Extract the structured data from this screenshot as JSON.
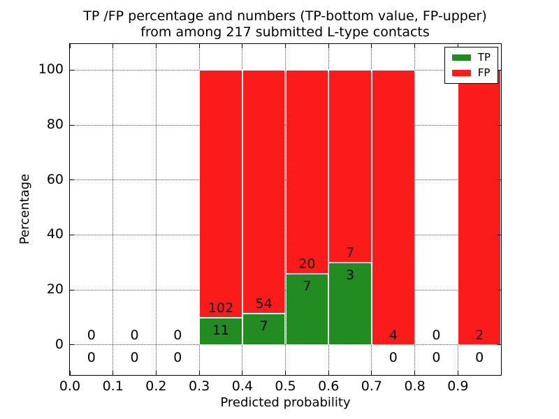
{
  "figure": {
    "title_line1": "TP /FP percentage and numbers (TP-bottom value, FP-upper)",
    "title_line2": "from among 217 submitted L-type contacts"
  },
  "chart_data": {
    "type": "bar",
    "stacking": "percent",
    "title": "TP /FP percentage and numbers (TP-bottom value, FP-upper)\nfrom among 217 submitted L-type contacts",
    "xlabel": "Predicted probability",
    "ylabel": "Percentage",
    "xlim": [
      0.0,
      1.0
    ],
    "ylim": [
      -11,
      109.5
    ],
    "grid": {
      "style": "dotted",
      "color": "#555555"
    },
    "total_submitted": 217,
    "x_ticks": [
      {
        "v": 0.0,
        "label": "0.0"
      },
      {
        "v": 0.1,
        "label": "0.1"
      },
      {
        "v": 0.2,
        "label": "0.2"
      },
      {
        "v": 0.3,
        "label": "0.3"
      },
      {
        "v": 0.4,
        "label": "0.4"
      },
      {
        "v": 0.5,
        "label": "0.5"
      },
      {
        "v": 0.6,
        "label": "0.6"
      },
      {
        "v": 0.7,
        "label": "0.7"
      },
      {
        "v": 0.8,
        "label": "0.8"
      },
      {
        "v": 0.9,
        "label": "0.9"
      }
    ],
    "y_ticks": [
      {
        "v": 0,
        "label": "0"
      },
      {
        "v": 20,
        "label": "20"
      },
      {
        "v": 40,
        "label": "40"
      },
      {
        "v": 60,
        "label": "60"
      },
      {
        "v": 80,
        "label": "80"
      },
      {
        "v": 100,
        "label": "100"
      }
    ],
    "legend": {
      "position": "upper-right",
      "items": [
        {
          "name": "TP",
          "color": "#228b22"
        },
        {
          "name": "FP",
          "color": "#fb1b1b"
        }
      ]
    },
    "bins": [
      {
        "x0": 0.0,
        "x1": 0.1,
        "tp": 0,
        "fp": 0
      },
      {
        "x0": 0.1,
        "x1": 0.2,
        "tp": 0,
        "fp": 0
      },
      {
        "x0": 0.2,
        "x1": 0.3,
        "tp": 0,
        "fp": 0
      },
      {
        "x0": 0.3,
        "x1": 0.4,
        "tp": 11,
        "fp": 102
      },
      {
        "x0": 0.4,
        "x1": 0.5,
        "tp": 7,
        "fp": 54
      },
      {
        "x0": 0.5,
        "x1": 0.6,
        "tp": 7,
        "fp": 20
      },
      {
        "x0": 0.6,
        "x1": 0.7,
        "tp": 3,
        "fp": 7
      },
      {
        "x0": 0.7,
        "x1": 0.8,
        "tp": 0,
        "fp": 4
      },
      {
        "x0": 0.8,
        "x1": 0.9,
        "tp": 0,
        "fp": 0
      },
      {
        "x0": 0.9,
        "x1": 1.0,
        "tp": 0,
        "fp": 2
      }
    ]
  }
}
